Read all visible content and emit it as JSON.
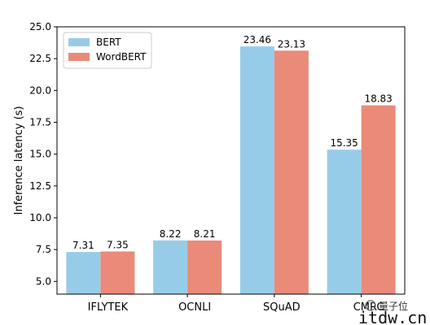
{
  "chart_data": {
    "type": "bar",
    "categories": [
      "IFLYTEK",
      "OCNLI",
      "SQuAD",
      "CMRC"
    ],
    "series": [
      {
        "name": "BERT",
        "values": [
          7.31,
          8.22,
          23.46,
          15.35
        ],
        "labels": [
          "7.31",
          "8.22",
          "23.46",
          "15.35"
        ],
        "color": "#97cce8"
      },
      {
        "name": "WordBERT",
        "values": [
          7.35,
          8.21,
          23.13,
          18.83
        ],
        "labels": [
          "7.35",
          "8.21",
          "23.13",
          "18.83"
        ],
        "color": "#ea8a78"
      }
    ],
    "ylabel": "Inference latency (s)",
    "ylim": [
      4.0,
      25.0
    ],
    "yticks": [
      5.0,
      7.5,
      10.0,
      12.5,
      15.0,
      17.5,
      20.0,
      22.5,
      25.0
    ],
    "ytick_labels": [
      "5.0",
      "7.5",
      "10.0",
      "12.5",
      "15.0",
      "17.5",
      "20.0",
      "22.5",
      "25.0"
    ],
    "legend_position": "top-left",
    "grid": false
  },
  "watermark": {
    "text": "量子位",
    "url_text": "itdw.cn"
  }
}
